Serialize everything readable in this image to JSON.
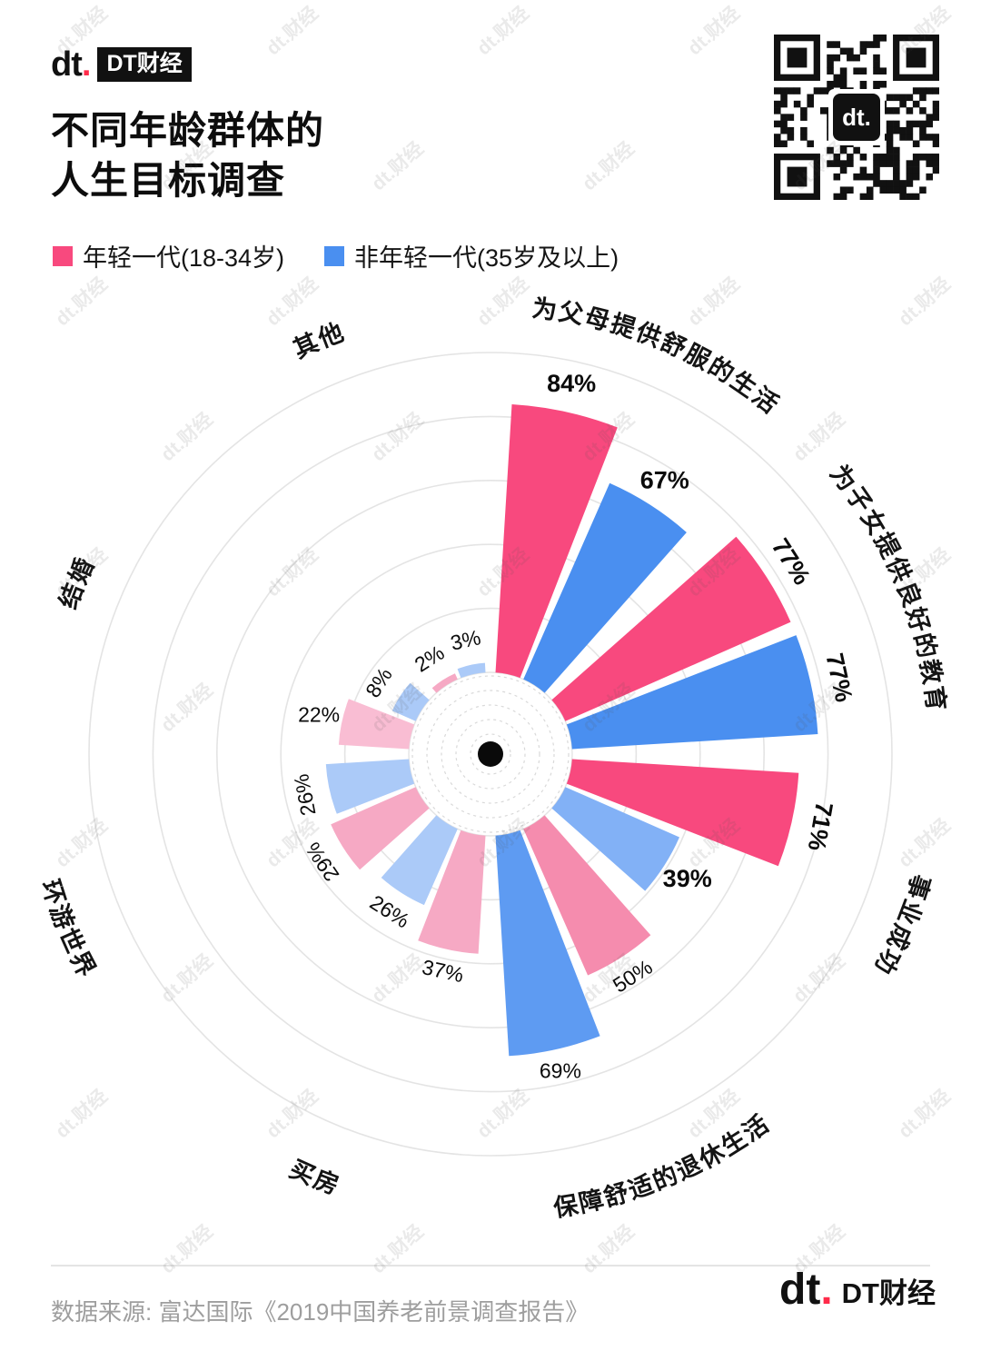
{
  "brand": {
    "logo_mark": "dt.",
    "logo_name": "DT财经",
    "accent_red": "#FF2B4A"
  },
  "header": {
    "title_line1": "不同年龄群体的",
    "title_line2": "人生目标调查"
  },
  "legend": [
    {
      "label": "年轻一代(18-34岁)",
      "color": "#F8497E"
    },
    {
      "label": "非年轻一代(35岁及以上)",
      "color": "#4A8FF0"
    }
  ],
  "chart_data": {
    "type": "bar",
    "variant": "polar-rose-nightingale",
    "title": "不同年龄群体的人生目标调查",
    "unit": "%",
    "categories": [
      "为父母提供舒服的生活",
      "为子女提供良好的教育",
      "事业成功",
      "保障舒适的退休生活",
      "买房",
      "环游世界",
      "结婚",
      "其他"
    ],
    "series": [
      {
        "name": "年轻一代(18-34岁)",
        "color": "#F8497E",
        "values": [
          84,
          77,
          71,
          50,
          37,
          29,
          22,
          2
        ]
      },
      {
        "name": "非年轻一代(35岁及以上)",
        "color": "#4A8FF0",
        "values": [
          67,
          77,
          39,
          69,
          26,
          26,
          8,
          3
        ]
      }
    ],
    "rings_percent": [
      20,
      40,
      60,
      80,
      100
    ],
    "value_range": [
      0,
      100
    ],
    "legend_position": "top-left",
    "style": {
      "bar_colors": [
        [
          "#F8497E",
          "#4A8FF0"
        ],
        [
          "#F8497E",
          "#4A8FF0"
        ],
        [
          "#F8497E",
          "#82B1F6"
        ],
        [
          "#F58CAE",
          "#5E9BF2"
        ],
        [
          "#F6A9C4",
          "#ABCAF8"
        ],
        [
          "#F6A9C4",
          "#ABCAF8"
        ],
        [
          "#F9BDD3",
          "#ABCAF8"
        ],
        [
          "#F6A9C4",
          "#ABCAF8"
        ]
      ],
      "label_bold": [
        [
          true,
          true
        ],
        [
          true,
          true
        ],
        [
          true,
          true
        ],
        [
          false,
          false
        ],
        [
          false,
          false
        ],
        [
          false,
          false
        ],
        [
          false,
          false
        ],
        [
          false,
          false
        ]
      ],
      "label_rot_override": [
        [
          0,
          0
        ],
        [
          null,
          null
        ],
        [
          100,
          0
        ],
        [
          null,
          0
        ],
        [
          null,
          null
        ],
        [
          -124,
          -101
        ],
        [
          0,
          null
        ],
        [
          null,
          null
        ]
      ],
      "category_label_flip": [
        false,
        false,
        false,
        true,
        true,
        true,
        false,
        false
      ]
    }
  },
  "footer": {
    "source": "数据来源: 富达国际《2019中国养老前景调查报告》"
  },
  "watermark": {
    "text": "dt.财经"
  }
}
